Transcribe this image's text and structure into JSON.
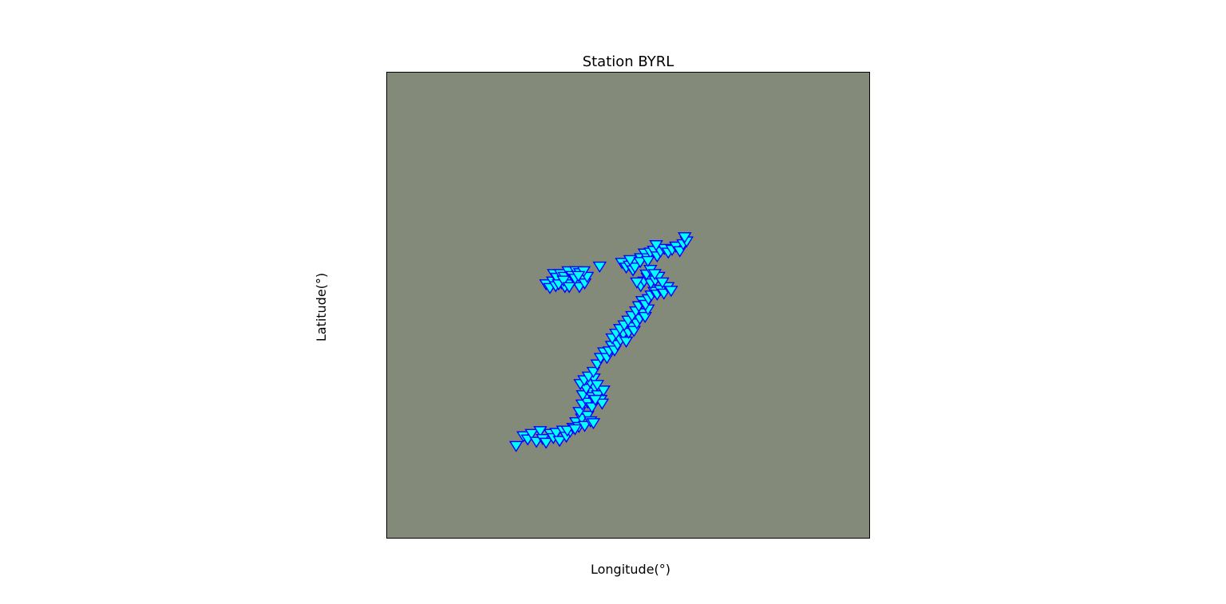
{
  "chart_data": {
    "type": "scatter",
    "title": "Station BYRL",
    "xlabel": "Longitude(°)",
    "ylabel": "Latitude(°)",
    "xlim": [
      0,
      1
    ],
    "ylim": [
      0,
      1
    ],
    "grid": false,
    "ticks_visible": false,
    "background_color": "#848a79",
    "marker": {
      "shape": "triangle-down",
      "fill": "#00ffff",
      "edge": "#0000ff"
    },
    "series": [
      {
        "points": [
          [
            0.268,
            0.197
          ],
          [
            0.283,
            0.218
          ],
          [
            0.292,
            0.211
          ],
          [
            0.3,
            0.223
          ],
          [
            0.31,
            0.206
          ],
          [
            0.318,
            0.229
          ],
          [
            0.323,
            0.212
          ],
          [
            0.33,
            0.204
          ],
          [
            0.339,
            0.223
          ],
          [
            0.345,
            0.214
          ],
          [
            0.351,
            0.225
          ],
          [
            0.358,
            0.208
          ],
          [
            0.365,
            0.23
          ],
          [
            0.372,
            0.217
          ],
          [
            0.38,
            0.228
          ],
          [
            0.386,
            0.236
          ],
          [
            0.392,
            0.248
          ],
          [
            0.398,
            0.238
          ],
          [
            0.404,
            0.256
          ],
          [
            0.41,
            0.24
          ],
          [
            0.416,
            0.262
          ],
          [
            0.422,
            0.25
          ],
          [
            0.428,
            0.246
          ],
          [
            0.374,
            0.23
          ],
          [
            0.39,
            0.233
          ],
          [
            0.399,
            0.27
          ],
          [
            0.405,
            0.286
          ],
          [
            0.411,
            0.3
          ],
          [
            0.416,
            0.29
          ],
          [
            0.421,
            0.312
          ],
          [
            0.426,
            0.302
          ],
          [
            0.431,
            0.322
          ],
          [
            0.437,
            0.306
          ],
          [
            0.443,
            0.296
          ],
          [
            0.449,
            0.316
          ],
          [
            0.406,
            0.306
          ],
          [
            0.413,
            0.32
          ],
          [
            0.421,
            0.334
          ],
          [
            0.429,
            0.342
          ],
          [
            0.436,
            0.328
          ],
          [
            0.401,
            0.33
          ],
          [
            0.409,
            0.338
          ],
          [
            0.446,
            0.288
          ],
          [
            0.425,
            0.28
          ],
          [
            0.432,
            0.296
          ],
          [
            0.418,
            0.346
          ],
          [
            0.428,
            0.356
          ],
          [
            0.436,
            0.372
          ],
          [
            0.443,
            0.386
          ],
          [
            0.45,
            0.398
          ],
          [
            0.456,
            0.386
          ],
          [
            0.461,
            0.4
          ],
          [
            0.466,
            0.412
          ],
          [
            0.472,
            0.402
          ],
          [
            0.478,
            0.414
          ],
          [
            0.484,
            0.424
          ],
          [
            0.49,
            0.437
          ],
          [
            0.496,
            0.421
          ],
          [
            0.501,
            0.44
          ],
          [
            0.506,
            0.452
          ],
          [
            0.512,
            0.444
          ],
          [
            0.518,
            0.46
          ],
          [
            0.524,
            0.47
          ],
          [
            0.529,
            0.482
          ],
          [
            0.535,
            0.474
          ],
          [
            0.541,
            0.49
          ],
          [
            0.467,
            0.428
          ],
          [
            0.475,
            0.438
          ],
          [
            0.483,
            0.448
          ],
          [
            0.492,
            0.456
          ],
          [
            0.5,
            0.466
          ],
          [
            0.508,
            0.476
          ],
          [
            0.516,
            0.486
          ],
          [
            0.522,
            0.497
          ],
          [
            0.529,
            0.508
          ],
          [
            0.536,
            0.5
          ],
          [
            0.542,
            0.512
          ],
          [
            0.548,
            0.52
          ],
          [
            0.554,
            0.528
          ],
          [
            0.56,
            0.522
          ],
          [
            0.567,
            0.532
          ],
          [
            0.574,
            0.524
          ],
          [
            0.582,
            0.538
          ],
          [
            0.589,
            0.53
          ],
          [
            0.526,
            0.54
          ],
          [
            0.533,
            0.55
          ],
          [
            0.54,
            0.558
          ],
          [
            0.547,
            0.546
          ],
          [
            0.556,
            0.552
          ],
          [
            0.563,
            0.56
          ],
          [
            0.571,
            0.548
          ],
          [
            0.538,
            0.565
          ],
          [
            0.546,
            0.575
          ],
          [
            0.555,
            0.566
          ],
          [
            0.518,
            0.548
          ],
          [
            0.487,
            0.59
          ],
          [
            0.496,
            0.58
          ],
          [
            0.503,
            0.584
          ],
          [
            0.51,
            0.574
          ],
          [
            0.516,
            0.59
          ],
          [
            0.526,
            0.6
          ],
          [
            0.534,
            0.61
          ],
          [
            0.54,
            0.6
          ],
          [
            0.546,
            0.612
          ],
          [
            0.553,
            0.616
          ],
          [
            0.56,
            0.604
          ],
          [
            0.567,
            0.614
          ],
          [
            0.575,
            0.62
          ],
          [
            0.583,
            0.612
          ],
          [
            0.591,
            0.618
          ],
          [
            0.599,
            0.625
          ],
          [
            0.607,
            0.615
          ],
          [
            0.614,
            0.63
          ],
          [
            0.621,
            0.636
          ],
          [
            0.617,
            0.645
          ],
          [
            0.514,
            0.58
          ],
          [
            0.504,
            0.596
          ],
          [
            0.525,
            0.592
          ],
          [
            0.541,
            0.594
          ],
          [
            0.558,
            0.628
          ],
          [
            0.33,
            0.544
          ],
          [
            0.338,
            0.536
          ],
          [
            0.344,
            0.55
          ],
          [
            0.35,
            0.54
          ],
          [
            0.356,
            0.554
          ],
          [
            0.362,
            0.546
          ],
          [
            0.369,
            0.538
          ],
          [
            0.375,
            0.552
          ],
          [
            0.381,
            0.544
          ],
          [
            0.387,
            0.56
          ],
          [
            0.393,
            0.548
          ],
          [
            0.399,
            0.538
          ],
          [
            0.405,
            0.556
          ],
          [
            0.41,
            0.546
          ],
          [
            0.415,
            0.56
          ],
          [
            0.346,
            0.566
          ],
          [
            0.352,
            0.558
          ],
          [
            0.36,
            0.566
          ],
          [
            0.368,
            0.56
          ],
          [
            0.376,
            0.572
          ],
          [
            0.384,
            0.562
          ],
          [
            0.392,
            0.572
          ],
          [
            0.4,
            0.568
          ],
          [
            0.408,
            0.572
          ],
          [
            0.441,
            0.582
          ],
          [
            0.356,
            0.544
          ],
          [
            0.366,
            0.552
          ],
          [
            0.378,
            0.538
          ],
          [
            0.39,
            0.556
          ],
          [
            0.397,
            0.562
          ]
        ]
      }
    ]
  }
}
